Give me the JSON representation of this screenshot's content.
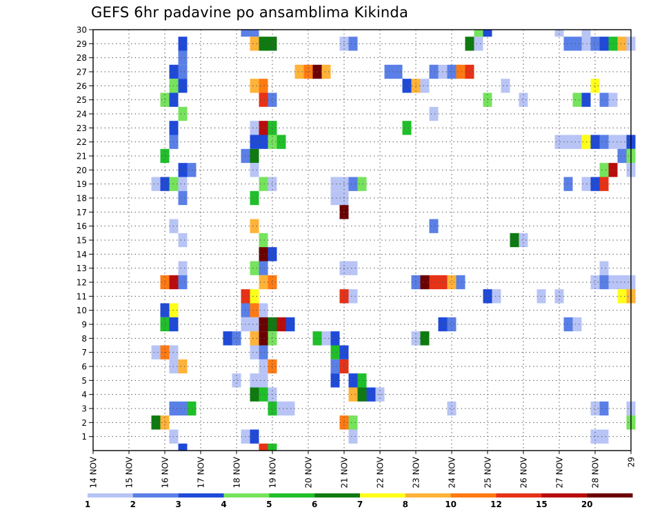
{
  "chart_data": {
    "type": "heatmap",
    "title": "GEFS 6hr padavine po ansamblima Kikinda",
    "xlabel": "",
    "ylabel": "",
    "x_categories": [
      "14 NOV",
      "15 NOV",
      "16 NOV",
      "17 NOV",
      "18 NOV",
      "19 NOV",
      "20 NOV",
      "21 NOV",
      "22 NOV",
      "23 NOV",
      "24 NOV",
      "25 NOV",
      "26 NOV",
      "27 NOV",
      "28 NOV",
      "29"
    ],
    "y_ticks": [
      1,
      2,
      3,
      4,
      5,
      6,
      7,
      8,
      9,
      10,
      11,
      12,
      13,
      14,
      15,
      16,
      17,
      18,
      19,
      20,
      21,
      22,
      23,
      24,
      25,
      26,
      27,
      28,
      29,
      30
    ],
    "ylim": [
      0,
      30
    ],
    "xlim_steps": [
      0,
      60
    ],
    "steps_per_day": 4,
    "grid": true,
    "colorbar": {
      "labels": [
        "1",
        "2",
        "3",
        "4",
        "5",
        "6",
        "7",
        "8",
        "10",
        "12",
        "15",
        "20"
      ],
      "colors": [
        "#b8c4f5",
        "#5a7fe6",
        "#1f4ad8",
        "#76e35c",
        "#1fbf2a",
        "#0e7a10",
        "#ffff1a",
        "#ffb338",
        "#ff7a12",
        "#e63216",
        "#b80d0d",
        "#6b0000"
      ]
    },
    "cells": [
      [
        17,
        30,
        1
      ],
      [
        18,
        30,
        1
      ],
      [
        43,
        30,
        3
      ],
      [
        44,
        30,
        2
      ],
      [
        52,
        30,
        0
      ],
      [
        55,
        30,
        0
      ],
      [
        18,
        29,
        7
      ],
      [
        19,
        29,
        5
      ],
      [
        20,
        29,
        5
      ],
      [
        28,
        29,
        0
      ],
      [
        29,
        29,
        1
      ],
      [
        42,
        29,
        5
      ],
      [
        43,
        29,
        0
      ],
      [
        53,
        29,
        1
      ],
      [
        54,
        29,
        1
      ],
      [
        55,
        29,
        0
      ],
      [
        56,
        29,
        1
      ],
      [
        57,
        29,
        2
      ],
      [
        58,
        29,
        4
      ],
      [
        59,
        29,
        7
      ],
      [
        60,
        29,
        0
      ],
      [
        10,
        29,
        2
      ],
      [
        10,
        28,
        1
      ],
      [
        9,
        27,
        2
      ],
      [
        10,
        27,
        1
      ],
      [
        23,
        27,
        7
      ],
      [
        24,
        27,
        8
      ],
      [
        25,
        27,
        11
      ],
      [
        26,
        27,
        7
      ],
      [
        33,
        27,
        1
      ],
      [
        34,
        27,
        1
      ],
      [
        38,
        27,
        1
      ],
      [
        39,
        27,
        0
      ],
      [
        40,
        27,
        1
      ],
      [
        41,
        27,
        8
      ],
      [
        42,
        27,
        9
      ],
      [
        9,
        26,
        3
      ],
      [
        10,
        26,
        2
      ],
      [
        18,
        26,
        7
      ],
      [
        19,
        26,
        8
      ],
      [
        35,
        26,
        2
      ],
      [
        36,
        26,
        7
      ],
      [
        37,
        26,
        0
      ],
      [
        46,
        26,
        0
      ],
      [
        56,
        26,
        6
      ],
      [
        8,
        25,
        3
      ],
      [
        9,
        25,
        2
      ],
      [
        19,
        25,
        9
      ],
      [
        20,
        25,
        1
      ],
      [
        44,
        25,
        3
      ],
      [
        48,
        25,
        0
      ],
      [
        54,
        25,
        3
      ],
      [
        55,
        25,
        2
      ],
      [
        57,
        25,
        1
      ],
      [
        58,
        25,
        0
      ],
      [
        10,
        24,
        3
      ],
      [
        38,
        24,
        0
      ],
      [
        9,
        23,
        2
      ],
      [
        18,
        23,
        0
      ],
      [
        19,
        23,
        10
      ],
      [
        20,
        23,
        4
      ],
      [
        35,
        23,
        4
      ],
      [
        9,
        22,
        1
      ],
      [
        18,
        22,
        2
      ],
      [
        19,
        22,
        2
      ],
      [
        20,
        22,
        3
      ],
      [
        21,
        22,
        4
      ],
      [
        52,
        22,
        0
      ],
      [
        53,
        22,
        0
      ],
      [
        54,
        22,
        0
      ],
      [
        55,
        22,
        6
      ],
      [
        56,
        22,
        2
      ],
      [
        57,
        22,
        1
      ],
      [
        58,
        22,
        0
      ],
      [
        59,
        22,
        0
      ],
      [
        60,
        22,
        2
      ],
      [
        8,
        21,
        4
      ],
      [
        17,
        21,
        1
      ],
      [
        18,
        21,
        5
      ],
      [
        59,
        21,
        1
      ],
      [
        60,
        21,
        3
      ],
      [
        10,
        20,
        2
      ],
      [
        11,
        20,
        1
      ],
      [
        18,
        20,
        0
      ],
      [
        57,
        20,
        3
      ],
      [
        58,
        20,
        10
      ],
      [
        60,
        20,
        0
      ],
      [
        7,
        19,
        0
      ],
      [
        8,
        19,
        2
      ],
      [
        9,
        19,
        3
      ],
      [
        10,
        19,
        0
      ],
      [
        19,
        19,
        3
      ],
      [
        20,
        19,
        0
      ],
      [
        27,
        19,
        0
      ],
      [
        28,
        19,
        0
      ],
      [
        29,
        19,
        1
      ],
      [
        30,
        19,
        3
      ],
      [
        53,
        19,
        1
      ],
      [
        55,
        19,
        0
      ],
      [
        56,
        19,
        2
      ],
      [
        57,
        19,
        9
      ],
      [
        10,
        18,
        1
      ],
      [
        18,
        18,
        4
      ],
      [
        27,
        18,
        0
      ],
      [
        28,
        18,
        0
      ],
      [
        28,
        17,
        11
      ],
      [
        38,
        16,
        1
      ],
      [
        9,
        16,
        0
      ],
      [
        18,
        16,
        7
      ],
      [
        10,
        15,
        0
      ],
      [
        19,
        15,
        3
      ],
      [
        47,
        15,
        5
      ],
      [
        48,
        15,
        0
      ],
      [
        19,
        14,
        11
      ],
      [
        20,
        14,
        2
      ],
      [
        10,
        13,
        0
      ],
      [
        18,
        13,
        3
      ],
      [
        19,
        13,
        1
      ],
      [
        28,
        13,
        0
      ],
      [
        29,
        13,
        0
      ],
      [
        57,
        13,
        0
      ],
      [
        8,
        12,
        8
      ],
      [
        9,
        12,
        10
      ],
      [
        10,
        12,
        1
      ],
      [
        19,
        12,
        7
      ],
      [
        20,
        12,
        8
      ],
      [
        36,
        12,
        1
      ],
      [
        37,
        12,
        11
      ],
      [
        38,
        12,
        9
      ],
      [
        39,
        12,
        9
      ],
      [
        40,
        12,
        7
      ],
      [
        41,
        12,
        1
      ],
      [
        56,
        12,
        0
      ],
      [
        57,
        12,
        1
      ],
      [
        58,
        12,
        0
      ],
      [
        59,
        12,
        0
      ],
      [
        60,
        12,
        0
      ],
      [
        17,
        11,
        9
      ],
      [
        18,
        11,
        6
      ],
      [
        28,
        11,
        9
      ],
      [
        29,
        11,
        0
      ],
      [
        44,
        11,
        2
      ],
      [
        45,
        11,
        0
      ],
      [
        50,
        11,
        0
      ],
      [
        52,
        11,
        0
      ],
      [
        59,
        11,
        6
      ],
      [
        60,
        11,
        7
      ],
      [
        8,
        10,
        2
      ],
      [
        9,
        10,
        6
      ],
      [
        17,
        10,
        1
      ],
      [
        18,
        10,
        8
      ],
      [
        19,
        10,
        0
      ],
      [
        8,
        9,
        4
      ],
      [
        9,
        9,
        2
      ],
      [
        17,
        9,
        0
      ],
      [
        18,
        9,
        0
      ],
      [
        19,
        9,
        11
      ],
      [
        20,
        9,
        5
      ],
      [
        21,
        9,
        10
      ],
      [
        22,
        9,
        2
      ],
      [
        39,
        9,
        2
      ],
      [
        40,
        9,
        1
      ],
      [
        53,
        9,
        1
      ],
      [
        54,
        9,
        0
      ],
      [
        15,
        8,
        2
      ],
      [
        16,
        8,
        1
      ],
      [
        18,
        8,
        7
      ],
      [
        19,
        8,
        11
      ],
      [
        20,
        8,
        3
      ],
      [
        25,
        8,
        4
      ],
      [
        26,
        8,
        0
      ],
      [
        27,
        8,
        2
      ],
      [
        36,
        8,
        0
      ],
      [
        37,
        8,
        5
      ],
      [
        7,
        7,
        0
      ],
      [
        8,
        7,
        8
      ],
      [
        9,
        7,
        0
      ],
      [
        18,
        7,
        0
      ],
      [
        19,
        7,
        1
      ],
      [
        27,
        7,
        4
      ],
      [
        28,
        7,
        2
      ],
      [
        9,
        6,
        0
      ],
      [
        10,
        6,
        7
      ],
      [
        19,
        6,
        0
      ],
      [
        20,
        6,
        8
      ],
      [
        27,
        6,
        1
      ],
      [
        28,
        6,
        9
      ],
      [
        16,
        5,
        0
      ],
      [
        18,
        5,
        0
      ],
      [
        19,
        5,
        0
      ],
      [
        27,
        5,
        2
      ],
      [
        29,
        5,
        2
      ],
      [
        30,
        5,
        4
      ],
      [
        18,
        4,
        5
      ],
      [
        19,
        4,
        4
      ],
      [
        20,
        4,
        0
      ],
      [
        29,
        4,
        7
      ],
      [
        30,
        4,
        5
      ],
      [
        31,
        4,
        2
      ],
      [
        32,
        4,
        0
      ],
      [
        9,
        3,
        1
      ],
      [
        10,
        3,
        1
      ],
      [
        11,
        3,
        4
      ],
      [
        20,
        3,
        4
      ],
      [
        21,
        3,
        0
      ],
      [
        22,
        3,
        0
      ],
      [
        40,
        3,
        0
      ],
      [
        56,
        3,
        0
      ],
      [
        57,
        3,
        1
      ],
      [
        60,
        3,
        0
      ],
      [
        7,
        2,
        5
      ],
      [
        8,
        2,
        7
      ],
      [
        28,
        2,
        8
      ],
      [
        29,
        2,
        3
      ],
      [
        60,
        2,
        3
      ],
      [
        9,
        1,
        0
      ],
      [
        17,
        1,
        0
      ],
      [
        18,
        1,
        2
      ],
      [
        29,
        1,
        0
      ],
      [
        56,
        1,
        0
      ],
      [
        57,
        1,
        0
      ],
      [
        10,
        0,
        2
      ],
      [
        19,
        0,
        9
      ],
      [
        20,
        0,
        4
      ]
    ]
  }
}
